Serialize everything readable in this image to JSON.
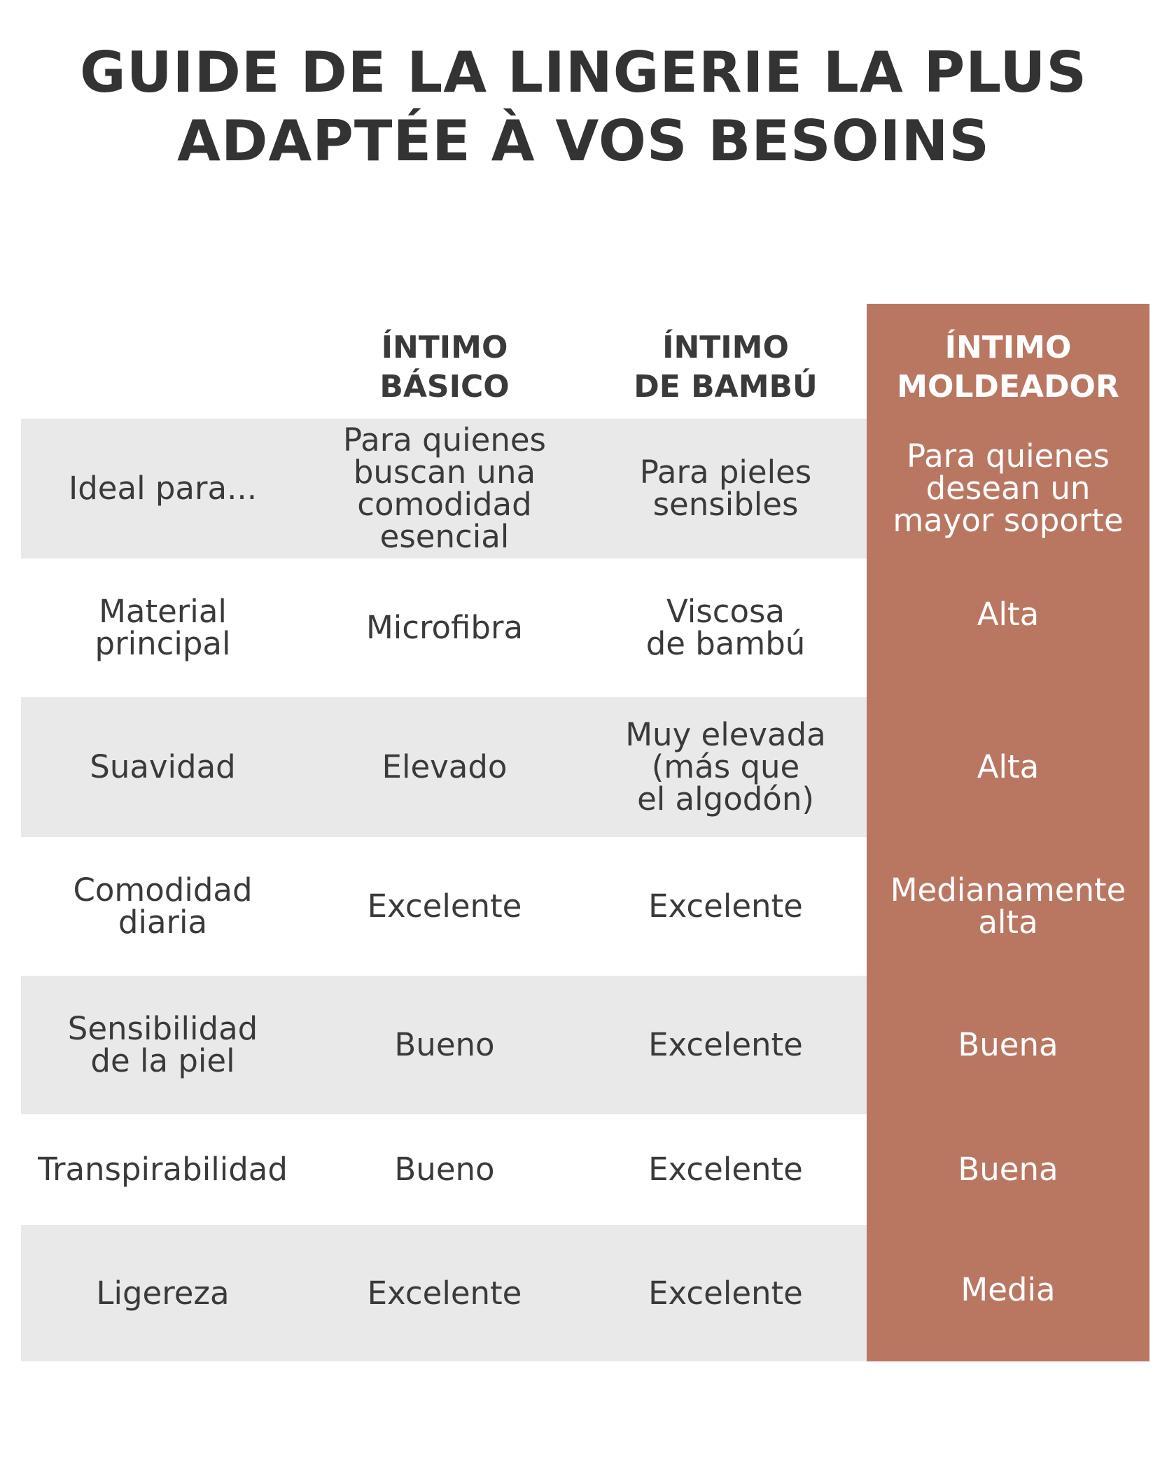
{
  "title": {
    "line1": "GUIDE DE LA LINGERIE LA PLUS",
    "line2": "ADAPTÉE À VOS BESOINS"
  },
  "colors": {
    "accent": "#b97762",
    "stripe": "#e9e9e9",
    "text": "#3a3a3a"
  },
  "table": {
    "columns": [
      "ÍNTIMO\nBÁSICO",
      "ÍNTIMO\nDE BAMBÚ",
      "ÍNTIMO\nMOLDEADOR"
    ],
    "rows": [
      {
        "label": "Ideal para...",
        "values": [
          "Para quienes\nbuscan una\ncomodidad\nesencial",
          "Para pieles\nsensibles",
          "Para quienes\ndesean un\nmayor soporte"
        ]
      },
      {
        "label": "Material\nprincipal",
        "values": [
          "Microfibra",
          "Viscosa\nde bambú",
          "Alta"
        ]
      },
      {
        "label": "Suavidad",
        "values": [
          "Elevado",
          "Muy elevada\n(más que\nel algodón)",
          "Alta"
        ]
      },
      {
        "label": "Comodidad\ndiaria",
        "values": [
          "Excelente",
          "Excelente",
          "Medianamente\nalta"
        ]
      },
      {
        "label": "Sensibilidad\nde la piel",
        "values": [
          "Bueno",
          "Excelente",
          "Buena"
        ]
      },
      {
        "label": "Transpirabilidad",
        "values": [
          "Bueno",
          "Excelente",
          "Buena"
        ]
      },
      {
        "label": "Ligereza",
        "values": [
          "Excelente",
          "Excelente",
          "Media"
        ]
      }
    ]
  }
}
